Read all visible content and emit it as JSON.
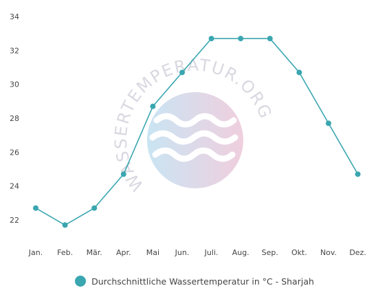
{
  "chart_data": {
    "type": "line",
    "categories": [
      "Jan.",
      "Feb.",
      "Mär.",
      "Apr.",
      "Mai",
      "Jun.",
      "Juli.",
      "Aug.",
      "Sep.",
      "Okt.",
      "Nov.",
      "Dez."
    ],
    "series": [
      {
        "name": "Durchschnittliche Wassertemperatur in °C - Sharjah",
        "values": [
          22.7,
          21.7,
          22.7,
          24.7,
          28.7,
          30.7,
          32.7,
          32.7,
          32.7,
          30.7,
          27.7,
          24.7
        ],
        "color": "#3aa6b0"
      }
    ],
    "yticks": [
      22,
      24,
      26,
      28,
      30,
      32,
      34
    ],
    "ylim": [
      21,
      34
    ],
    "grid": false,
    "legend_position": "bottom-center",
    "watermark": "WASSERTEMPERATUR.ORG"
  }
}
